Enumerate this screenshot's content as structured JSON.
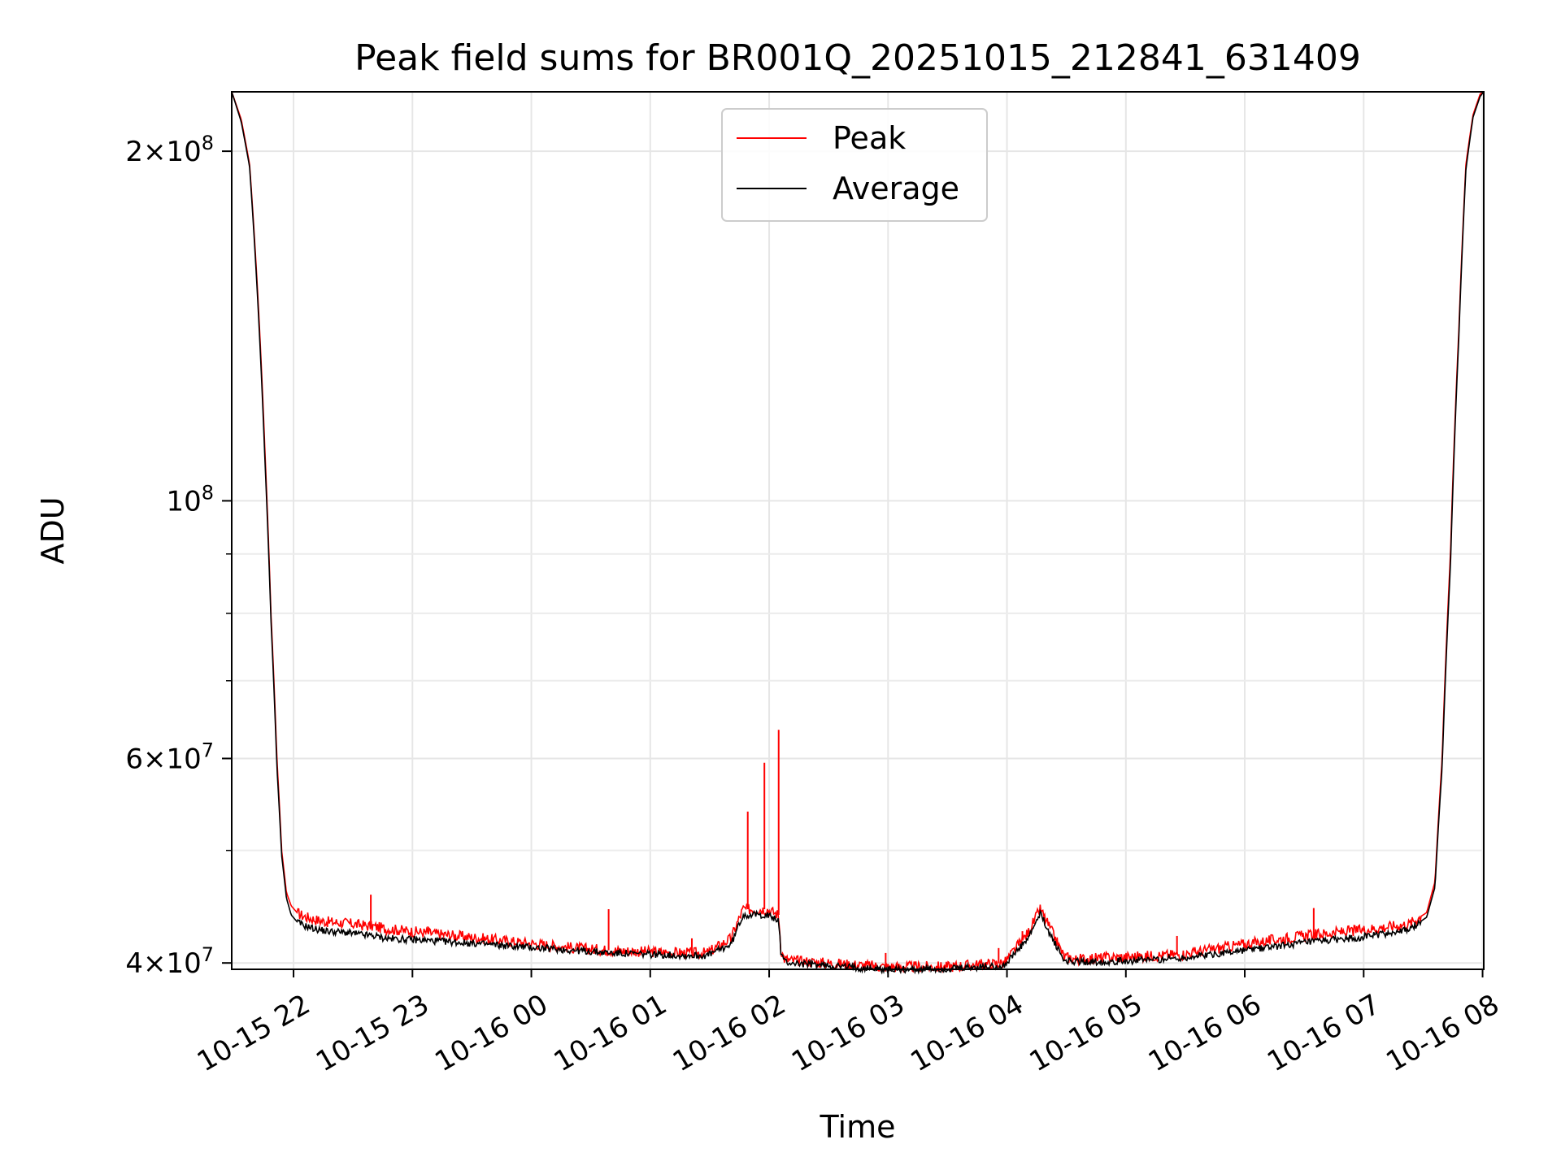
{
  "chart_data": {
    "type": "line",
    "title": "Peak field sums for BR001Q_20251015_212841_631409",
    "xlabel": "Time",
    "ylabel": "ADU",
    "yscale": "log",
    "ylim": [
      39500000,
      225000000
    ],
    "xlim_hours": [
      0,
      10.53
    ],
    "grid": true,
    "legend_position": "upper-center",
    "x_tick_labels": [
      "10-15 22",
      "10-15 23",
      "10-16 00",
      "10-16 01",
      "10-16 02",
      "10-16 03",
      "10-16 04",
      "10-16 05",
      "10-16 06",
      "10-16 07",
      "10-16 08"
    ],
    "x_tick_hours": [
      0.52,
      1.52,
      2.52,
      3.52,
      4.52,
      5.52,
      6.52,
      7.52,
      8.52,
      9.52,
      10.52
    ],
    "y_tick_labels": [
      {
        "value": 200000000,
        "mantissa": "2",
        "exp": "8"
      },
      {
        "value": 100000000,
        "mantissa": "",
        "exp": "8"
      },
      {
        "value": 60000000,
        "mantissa": "6",
        "exp": "7"
      },
      {
        "value": 40000000,
        "mantissa": "4",
        "exp": "7"
      }
    ],
    "y_minor_ticks": [
      50000000,
      70000000,
      80000000,
      90000000
    ],
    "series": [
      {
        "name": "Peak",
        "color": "#ff0000",
        "x": [
          0,
          0.08,
          0.15,
          0.22,
          0.28,
          0.33,
          0.38,
          0.42,
          0.46,
          0.5,
          0.55,
          0.6,
          0.7,
          0.8,
          0.95,
          1.1,
          1.2,
          1.3,
          1.5,
          1.7,
          2.0,
          2.3,
          2.6,
          2.9,
          3.2,
          3.5,
          3.8,
          4.0,
          4.2,
          4.3,
          4.34,
          4.36,
          4.5,
          4.6,
          4.62,
          4.65,
          4.7,
          5.0,
          5.5,
          6.0,
          6.5,
          6.7,
          6.8,
          6.9,
          7.0,
          7.1,
          7.3,
          7.6,
          8.0,
          8.5,
          9.0,
          9.5,
          9.9,
          10.05,
          10.12,
          10.18,
          10.25,
          10.32,
          10.38,
          10.44,
          10.5,
          10.53
        ],
        "y": [
          225000000,
          213000000,
          195000000,
          150000000,
          110000000,
          80000000,
          60000000,
          50000000,
          46000000,
          44800000,
          44200000,
          43900000,
          43600000,
          43400000,
          43300000,
          43100000,
          43000000,
          42800000,
          42600000,
          42400000,
          42100000,
          41800000,
          41500000,
          41200000,
          41000000,
          40900000,
          40800000,
          40800000,
          42000000,
          44500000,
          44500000,
          44500000,
          44500000,
          44000000,
          41000000,
          40300000,
          40200000,
          40000000,
          39700000,
          39700000,
          40000000,
          42500000,
          44500000,
          42500000,
          40500000,
          40300000,
          40400000,
          40500000,
          40700000,
          41500000,
          42200000,
          42700000,
          43200000,
          44200000,
          47000000,
          60000000,
          90000000,
          140000000,
          195000000,
          215000000,
          224000000,
          225000000
        ]
      },
      {
        "name": "Average",
        "color": "#000000",
        "x": [
          0,
          0.08,
          0.15,
          0.22,
          0.28,
          0.33,
          0.38,
          0.42,
          0.46,
          0.5,
          0.55,
          0.6,
          0.7,
          0.8,
          0.95,
          1.1,
          1.2,
          1.3,
          1.5,
          1.7,
          2.0,
          2.3,
          2.6,
          2.9,
          3.2,
          3.5,
          3.8,
          4.0,
          4.2,
          4.3,
          4.34,
          4.36,
          4.5,
          4.6,
          4.62,
          4.65,
          4.7,
          5.0,
          5.5,
          6.0,
          6.5,
          6.7,
          6.8,
          6.9,
          7.0,
          7.1,
          7.3,
          7.6,
          8.0,
          8.5,
          9.0,
          9.5,
          9.9,
          10.05,
          10.12,
          10.18,
          10.25,
          10.32,
          10.38,
          10.44,
          10.5,
          10.53
        ],
        "y": [
          225000000,
          212000000,
          194000000,
          148000000,
          108000000,
          79000000,
          59000000,
          49500000,
          45500000,
          44000000,
          43400000,
          43100000,
          42800000,
          42600000,
          42500000,
          42300000,
          42200000,
          42000000,
          41900000,
          41800000,
          41600000,
          41400000,
          41200000,
          41000000,
          40800000,
          40700000,
          40600000,
          40600000,
          41500000,
          44000000,
          44000000,
          44000000,
          44000000,
          43500000,
          40700000,
          40100000,
          40000000,
          39800000,
          39500000,
          39500000,
          39800000,
          42000000,
          44100000,
          42000000,
          40200000,
          40100000,
          40100000,
          40200000,
          40400000,
          41000000,
          41600000,
          42100000,
          42700000,
          43800000,
          46500000,
          59000000,
          88000000,
          138000000,
          193000000,
          214000000,
          223000000,
          225000000
        ]
      }
    ],
    "peak_spikes": [
      {
        "x": 1.17,
        "y": 45800000
      },
      {
        "x": 1.65,
        "y": 43000000
      },
      {
        "x": 3.17,
        "y": 44500000
      },
      {
        "x": 3.87,
        "y": 42000000
      },
      {
        "x": 4.34,
        "y": 54000000
      },
      {
        "x": 4.48,
        "y": 59500000
      },
      {
        "x": 4.6,
        "y": 63500000
      },
      {
        "x": 5.5,
        "y": 40800000
      },
      {
        "x": 6.45,
        "y": 41200000
      },
      {
        "x": 6.65,
        "y": 42600000
      },
      {
        "x": 7.95,
        "y": 42200000
      },
      {
        "x": 9.1,
        "y": 44600000
      },
      {
        "x": 10.1,
        "y": 46000000
      }
    ]
  }
}
